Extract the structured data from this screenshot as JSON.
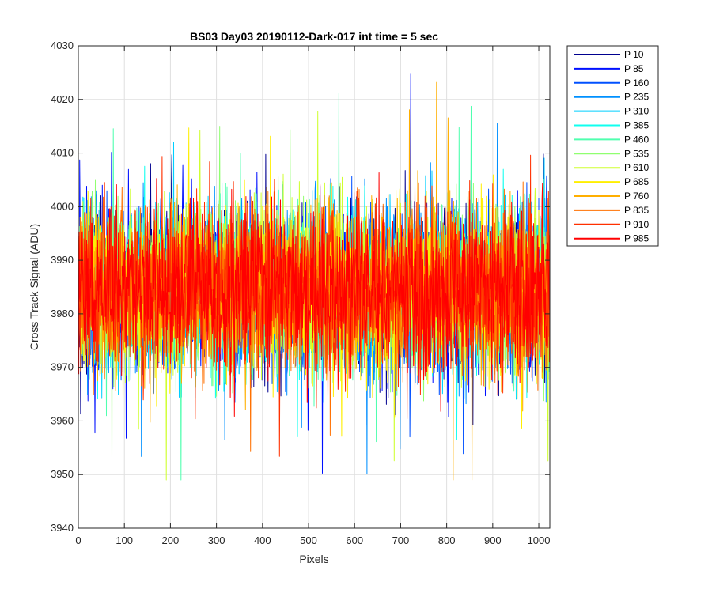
{
  "chart_data": {
    "type": "line",
    "title": "BS03 Day03 20190112-Dark-017 int time = 5 sec",
    "xlabel": "Pixels",
    "ylabel": "Cross Track Signal (ADU)",
    "xlim": [
      0,
      1024
    ],
    "ylim": [
      3940,
      4030
    ],
    "xticks": [
      0,
      100,
      200,
      300,
      400,
      500,
      600,
      700,
      800,
      900,
      1000
    ],
    "yticks": [
      3940,
      3950,
      3960,
      3970,
      3980,
      3990,
      4000,
      4010,
      4020,
      4030
    ],
    "grid": true,
    "legend_position": "outside-top-right",
    "x_range": {
      "start": 1,
      "end": 1024
    },
    "noise_model": {
      "mean": 3984.5,
      "std_dev": 7.5,
      "min": 3949,
      "max": 4028
    },
    "series": [
      {
        "name": "P 10",
        "color": "#00008f"
      },
      {
        "name": "P 85",
        "color": "#0010ff"
      },
      {
        "name": "P 160",
        "color": "#0050ff"
      },
      {
        "name": "P 235",
        "color": "#0090ff"
      },
      {
        "name": "P 310",
        "color": "#00cfff"
      },
      {
        "name": "P 385",
        "color": "#10ffef"
      },
      {
        "name": "P 460",
        "color": "#50ffaf"
      },
      {
        "name": "P 535",
        "color": "#90ff70"
      },
      {
        "name": "P 610",
        "color": "#cfff30"
      },
      {
        "name": "P 685",
        "color": "#ffef00"
      },
      {
        "name": "P 760",
        "color": "#ffaf00"
      },
      {
        "name": "P 835",
        "color": "#ff7000"
      },
      {
        "name": "P 910",
        "color": "#ff3000"
      },
      {
        "name": "P 985",
        "color": "#ff0000"
      }
    ]
  }
}
